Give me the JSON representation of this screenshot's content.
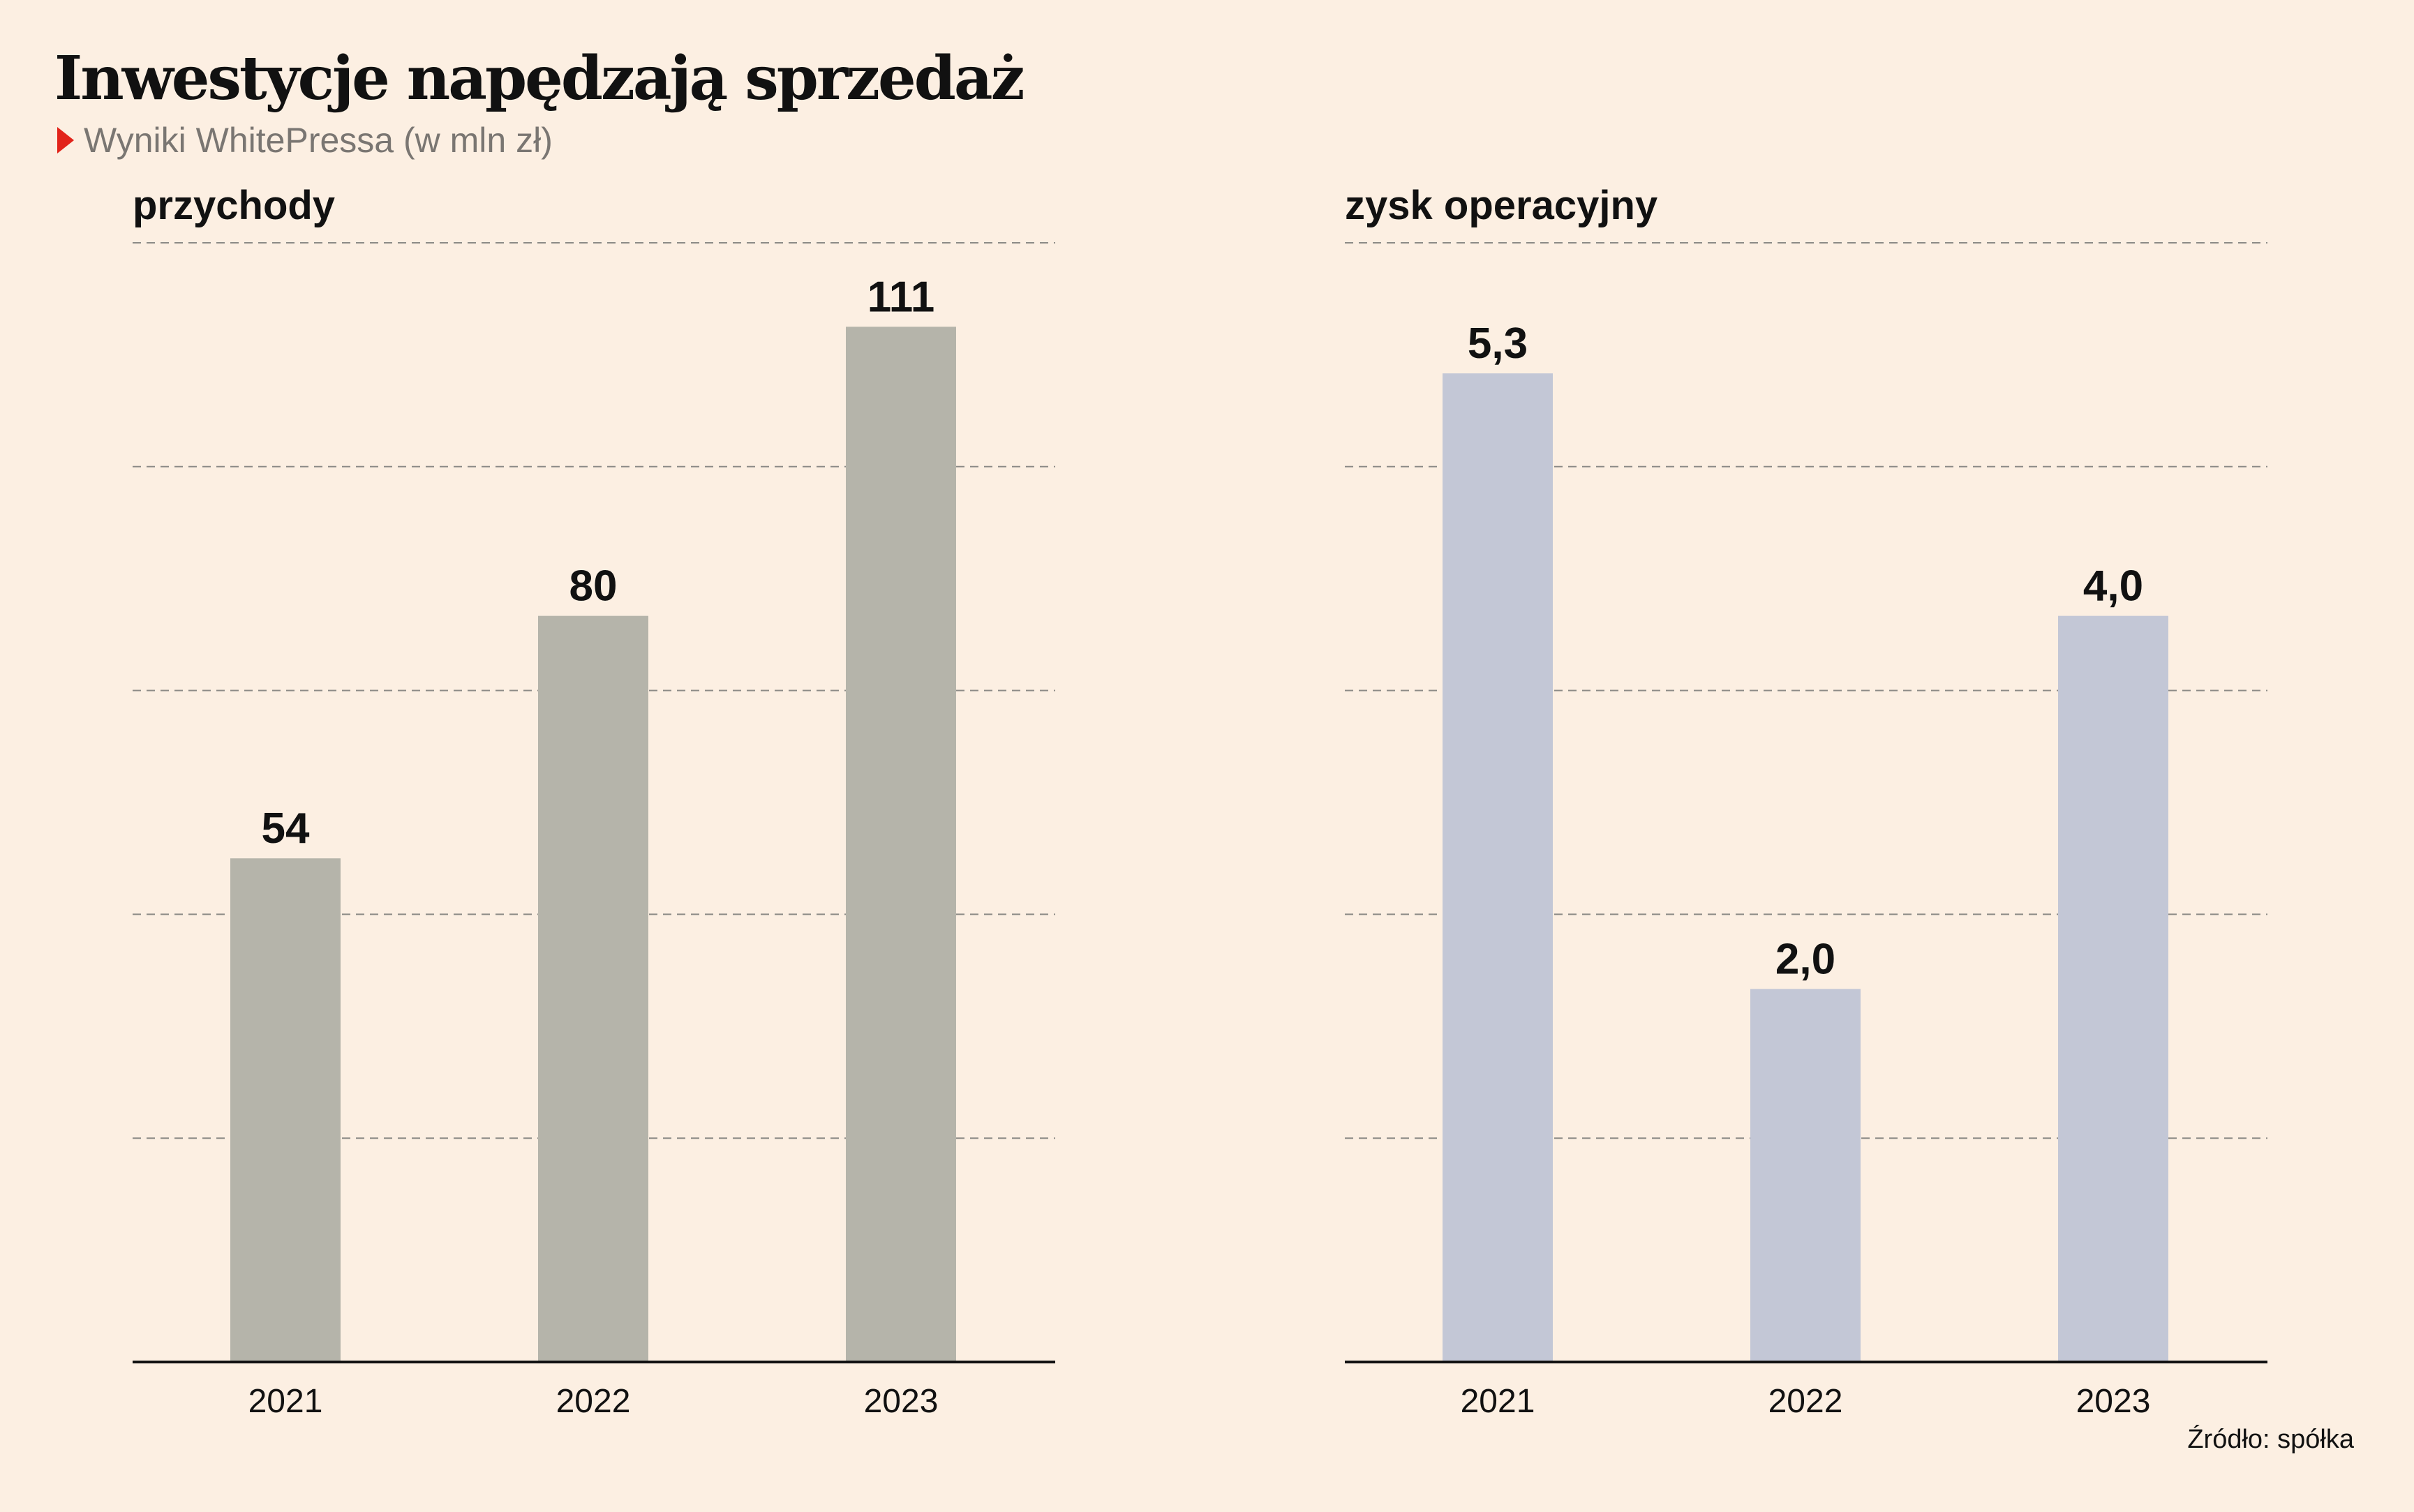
{
  "header": {
    "title": "Inwestycje napędzają sprzedaż",
    "subtitle": "Wyniki WhitePressa (w mln zł)"
  },
  "footer": {
    "source": "Źródło: spółka"
  },
  "colors": {
    "revenue_bar": "#b5b4aa",
    "profit_bar": "#c3c7d6",
    "marker": "#e2231a",
    "background": "#fcefe2"
  },
  "chart_data": [
    {
      "type": "bar",
      "title": "przychody",
      "categories": [
        "2021",
        "2022",
        "2023"
      ],
      "values": [
        54,
        80,
        111
      ],
      "value_labels": [
        "54",
        "80",
        "111"
      ],
      "ylim": [
        0,
        120
      ],
      "grid": true,
      "grid_values": [
        24,
        48,
        72,
        96,
        120
      ]
    },
    {
      "type": "bar",
      "title": "zysk operacyjny",
      "categories": [
        "2021",
        "2022",
        "2023"
      ],
      "values": [
        5.3,
        2.0,
        4.0
      ],
      "value_labels": [
        "5,3",
        "2,0",
        "4,0"
      ],
      "ylim": [
        0,
        6
      ],
      "grid": true,
      "grid_values": [
        1.2,
        2.4,
        3.6,
        4.8,
        6
      ]
    }
  ]
}
